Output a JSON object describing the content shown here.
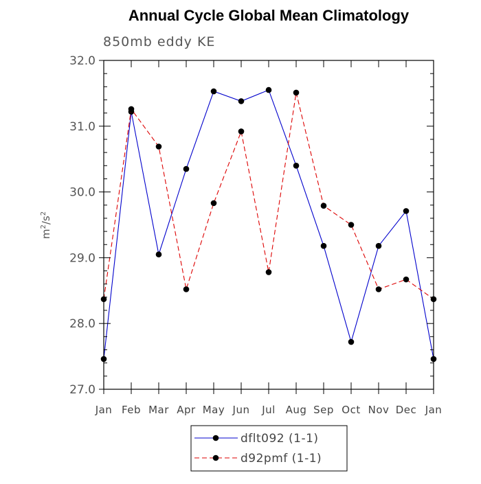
{
  "chart_data": {
    "type": "line",
    "title": "Annual Cycle Global Mean Climatology",
    "subtitle": "850mb eddy KE",
    "xlabel": "",
    "ylabel_base": "m",
    "ylabel_exp1": "2",
    "ylabel_mid": "/s",
    "ylabel_exp2": "2",
    "categories": [
      "Jan",
      "Feb",
      "Mar",
      "Apr",
      "May",
      "Jun",
      "Jul",
      "Aug",
      "Sep",
      "Oct",
      "Nov",
      "Dec",
      "Jan"
    ],
    "ylim": [
      27.0,
      32.0
    ],
    "yticks": [
      "27.0",
      "28.0",
      "29.0",
      "30.0",
      "31.0",
      "32.0"
    ],
    "grid": false,
    "legend_position": "bottom",
    "series": [
      {
        "name": "dflt092 (1-1)",
        "color": "#0000cc",
        "style": "solid",
        "values": [
          27.46,
          31.22,
          29.05,
          30.35,
          31.53,
          31.38,
          31.55,
          30.4,
          29.18,
          27.72,
          29.18,
          29.71,
          27.46
        ]
      },
      {
        "name": "d92pmf (1-1)",
        "color": "#dd0000",
        "style": "dashed",
        "values": [
          28.37,
          31.26,
          30.69,
          28.52,
          29.83,
          30.92,
          28.78,
          31.51,
          29.79,
          29.5,
          28.52,
          28.67,
          28.37
        ]
      }
    ]
  }
}
